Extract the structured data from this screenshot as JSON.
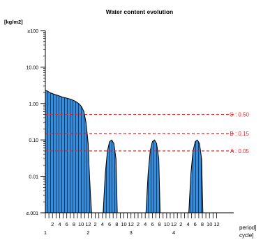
{
  "chart_data": {
    "type": "area",
    "title": "Water content evolution",
    "ylabel": "[kg/m2]",
    "y_scale": "log",
    "ylim": [
      0.001,
      100
    ],
    "y_ticks": [
      {
        "value": 100,
        "label": "≥100"
      },
      {
        "value": 10,
        "label": "10.00"
      },
      {
        "value": 1,
        "label": "1.00"
      },
      {
        "value": 0.1,
        "label": "0.10"
      },
      {
        "value": 0.01,
        "label": "0.01"
      },
      {
        "value": 0.001,
        "label": "≤.001"
      }
    ],
    "x_axis": {
      "period_label": "period]",
      "cycle_label": "cycle]",
      "xlim": [
        0,
        4.4
      ],
      "period_ticks": [
        {
          "x": 0.1667,
          "label": "2"
        },
        {
          "x": 0.3333,
          "label": "4"
        },
        {
          "x": 0.5,
          "label": "6"
        },
        {
          "x": 0.6667,
          "label": "8"
        },
        {
          "x": 0.8333,
          "label": "10"
        },
        {
          "x": 1.0,
          "label": "12"
        },
        {
          "x": 1.1667,
          "label": "2"
        },
        {
          "x": 1.3333,
          "label": "4"
        },
        {
          "x": 1.5,
          "label": "6"
        },
        {
          "x": 1.6667,
          "label": "8"
        },
        {
          "x": 1.8333,
          "label": "10"
        },
        {
          "x": 2.0,
          "label": "12"
        },
        {
          "x": 2.1667,
          "label": "2"
        },
        {
          "x": 2.3333,
          "label": "4"
        },
        {
          "x": 2.5,
          "label": "6"
        },
        {
          "x": 2.6667,
          "label": "8"
        },
        {
          "x": 2.8333,
          "label": "10"
        },
        {
          "x": 3.0,
          "label": "12"
        },
        {
          "x": 3.1667,
          "label": "2"
        },
        {
          "x": 3.3333,
          "label": "4"
        },
        {
          "x": 3.5,
          "label": "6"
        },
        {
          "x": 3.6667,
          "label": "8"
        },
        {
          "x": 3.8333,
          "label": "10"
        },
        {
          "x": 4.0,
          "label": "12"
        }
      ],
      "cycle_ticks": [
        {
          "x": 0,
          "label": "1"
        },
        {
          "x": 1.0,
          "label": "2"
        },
        {
          "x": 2.0,
          "label": "3"
        },
        {
          "x": 3.0,
          "label": "4"
        }
      ]
    },
    "reference_lines": [
      {
        "label": "C : 0.50",
        "value": 0.5
      },
      {
        "label": "B : 0.15",
        "value": 0.15
      },
      {
        "label": "A : 0.05",
        "value": 0.05
      }
    ],
    "series": [
      {
        "fill_color": "#2f8fe0",
        "stripe_color": "#0b3f78",
        "outline_color": "#000000",
        "x": [
          0,
          0.05,
          0.1,
          0.2,
          0.3,
          0.4,
          0.5,
          0.6,
          0.7,
          0.75,
          0.8,
          0.85,
          0.9,
          0.95,
          1.0,
          1.02,
          1.05,
          1.08,
          1.35,
          1.4,
          1.45,
          1.5,
          1.55,
          1.6,
          1.65,
          1.68,
          2.35,
          2.4,
          2.45,
          2.5,
          2.55,
          2.6,
          2.65,
          2.68,
          3.35,
          3.4,
          3.45,
          3.5,
          3.55,
          3.6,
          3.65,
          3.68
        ],
        "y": [
          2.3,
          2.2,
          2.0,
          1.8,
          1.65,
          1.5,
          1.4,
          1.3,
          1.15,
          1.05,
          0.95,
          0.8,
          0.6,
          0.3,
          0.08,
          0.02,
          0.004,
          0.001,
          0.001,
          0.012,
          0.05,
          0.09,
          0.1,
          0.08,
          0.03,
          0.001,
          0.001,
          0.012,
          0.05,
          0.09,
          0.1,
          0.08,
          0.03,
          0.001,
          0.001,
          0.012,
          0.05,
          0.09,
          0.1,
          0.08,
          0.03,
          0.001
        ]
      }
    ],
    "colors": {
      "reference_line": "#e8262b",
      "axis": "#000000",
      "text": "#000000"
    }
  }
}
